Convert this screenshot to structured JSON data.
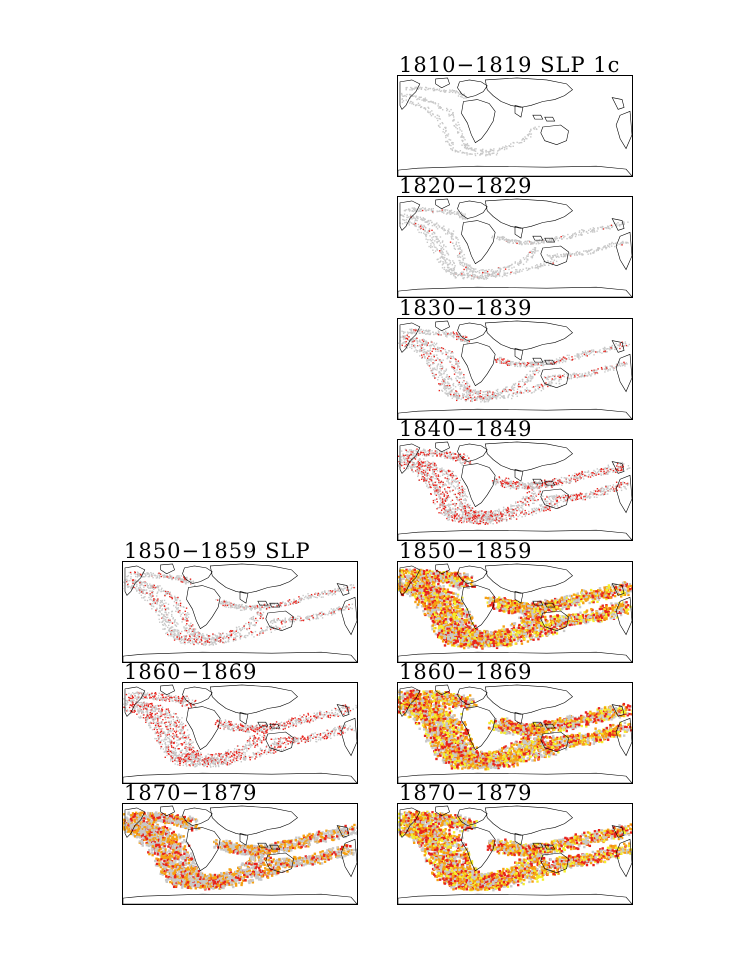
{
  "colors": {
    "land_outline": "#000000",
    "sparse_obs": "#c8c8c8",
    "low_density": "#e8231c",
    "mid_density": "#f5a012",
    "high_density": "#f5ee2a"
  },
  "left_column": [
    {
      "title": "1850−1859 SLP",
      "density_level": 1
    },
    {
      "title": "1860−1869",
      "density_level": 2
    },
    {
      "title": "1870−1879",
      "density_level": 3
    }
  ],
  "right_column": [
    {
      "title": "1810−1819 SLP 1c",
      "density_level": 0
    },
    {
      "title": "1820−1829",
      "density_level": 0.5
    },
    {
      "title": "1830−1839",
      "density_level": 1
    },
    {
      "title": "1840−1849",
      "density_level": 2
    },
    {
      "title": "1850−1859",
      "density_level": 4
    },
    {
      "title": "1860−1869",
      "density_level": 4
    },
    {
      "title": "1870−1879",
      "density_level": 4
    }
  ]
}
